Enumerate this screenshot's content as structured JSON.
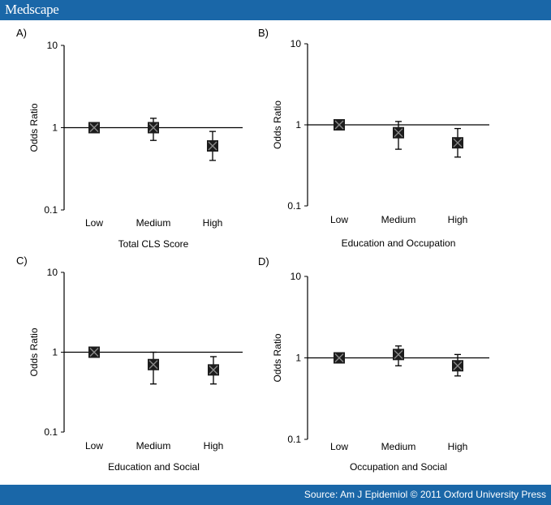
{
  "header": {
    "logo": "Medscape"
  },
  "footer": {
    "source": "Source: Am J Epidemiol © 2011 Oxford University Press"
  },
  "chart_data": [
    {
      "type": "scatter",
      "panel_label": "A)",
      "xlabel": "Total CLS Score",
      "ylabel": "Odds Ratio",
      "yscale": "log",
      "ylim": [
        0.1,
        10
      ],
      "y_ticks": [
        "0.1",
        "1",
        "10"
      ],
      "categories": [
        "Low",
        "Medium",
        "High"
      ],
      "values": [
        1.0,
        1.0,
        0.6
      ],
      "ci_lower": [
        1.0,
        0.7,
        0.4
      ],
      "ci_upper": [
        1.0,
        1.3,
        0.9
      ]
    },
    {
      "type": "scatter",
      "panel_label": "B)",
      "xlabel": "Education and Occupation",
      "ylabel": "Odds Ratio",
      "yscale": "log",
      "ylim": [
        0.1,
        10
      ],
      "y_ticks": [
        "0.1",
        "1",
        "10"
      ],
      "categories": [
        "Low",
        "Medium",
        "High"
      ],
      "values": [
        1.0,
        0.8,
        0.6
      ],
      "ci_lower": [
        1.0,
        0.5,
        0.4
      ],
      "ci_upper": [
        1.0,
        1.1,
        0.9
      ]
    },
    {
      "type": "scatter",
      "panel_label": "C)",
      "xlabel": "Education and Social",
      "ylabel": "Odds Ratio",
      "yscale": "log",
      "ylim": [
        0.1,
        10
      ],
      "y_ticks": [
        "0.1",
        "1",
        "10"
      ],
      "categories": [
        "Low",
        "Medium",
        "High"
      ],
      "values": [
        1.0,
        0.7,
        0.6
      ],
      "ci_lower": [
        1.0,
        0.4,
        0.4
      ],
      "ci_upper": [
        1.0,
        1.0,
        0.88
      ]
    },
    {
      "type": "scatter",
      "panel_label": "D)",
      "xlabel": "Occupation and Social",
      "ylabel": "Odds Ratio",
      "yscale": "log",
      "ylim": [
        0.1,
        10
      ],
      "y_ticks": [
        "0.1",
        "1",
        "10"
      ],
      "categories": [
        "Low",
        "Medium",
        "High"
      ],
      "values": [
        1.0,
        1.1,
        0.8
      ],
      "ci_lower": [
        1.0,
        0.8,
        0.6
      ],
      "ci_upper": [
        1.0,
        1.4,
        1.1
      ]
    }
  ]
}
